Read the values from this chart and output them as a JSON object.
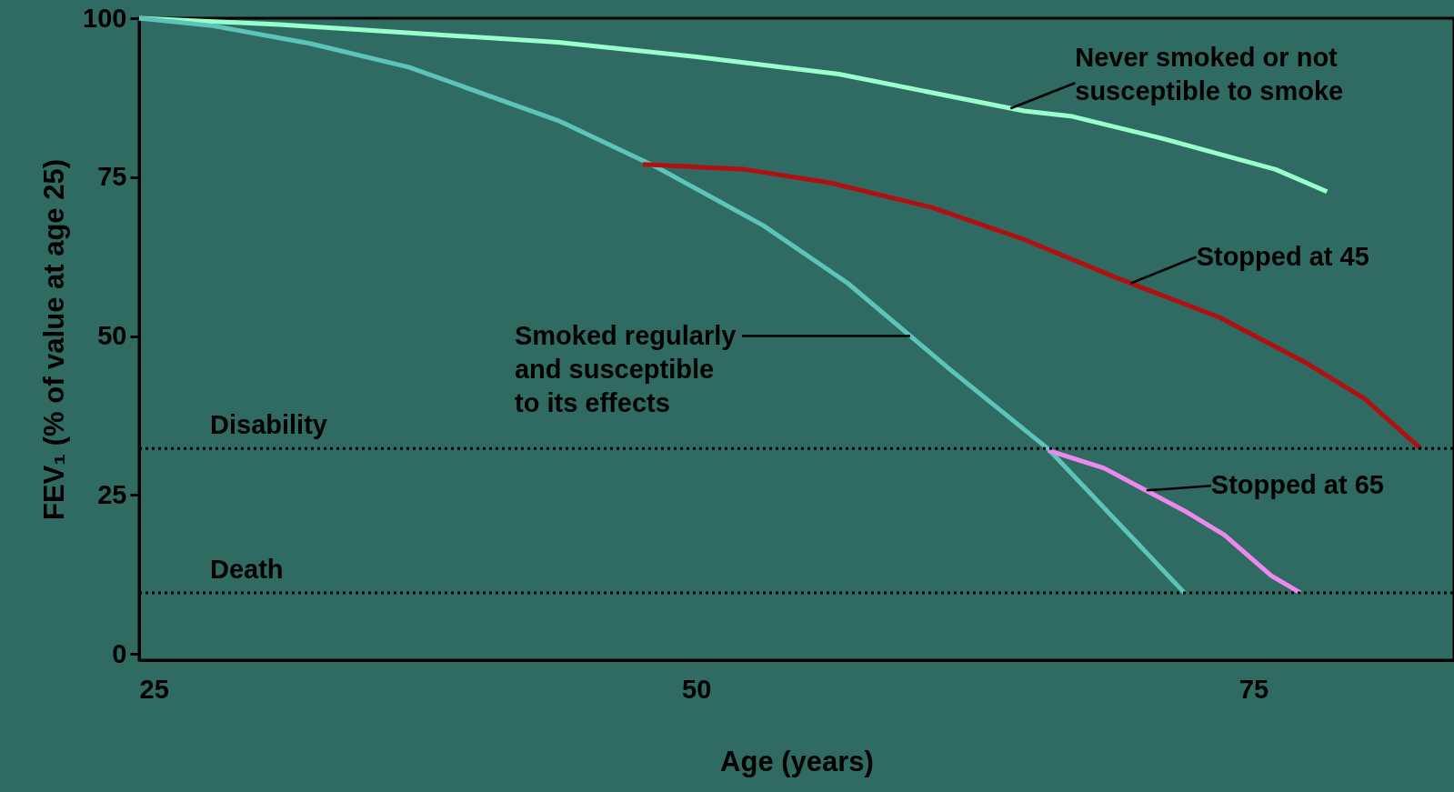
{
  "chart_data": {
    "type": "line",
    "xlabel": "Age (years)",
    "ylabel": "FEV₁ (% of value at age 25)",
    "xlim": [
      25,
      84
    ],
    "ylim": [
      -1,
      100
    ],
    "xticks": [
      25,
      50,
      75
    ],
    "yticks": [
      0,
      25,
      50,
      75,
      100
    ],
    "grid": false,
    "marker": "none",
    "line_style": "solid",
    "series": [
      {
        "color": "#99ffcc",
        "x": [
          25,
          31.3,
          43.8,
          50.1,
          56.4,
          64.7,
          66.8,
          71.0,
          76.0,
          78.3
        ],
        "values": [
          100,
          99,
          96.2,
          93.9,
          91.2,
          85.4,
          84.6,
          81,
          76.2,
          72.7
        ]
      },
      {
        "color": "#5cc4b8",
        "x": [
          25,
          28.3,
          32.7,
          37.1,
          43.8,
          48.2,
          53,
          56.8,
          61.4,
          65.8,
          71.9
        ],
        "values": [
          100,
          98.8,
          96,
          92.3,
          83.9,
          76.6,
          67.4,
          58.3,
          44.7,
          32.2,
          9.6
        ]
      },
      {
        "color": "#b01010",
        "x": [
          47.6,
          52.2,
          56,
          60.6,
          64.7,
          68.9,
          73.5,
          77.3,
          80,
          82.5
        ],
        "values": [
          77,
          76.2,
          74.1,
          70.2,
          65.2,
          59.1,
          52.9,
          45.9,
          40.1,
          32.3
        ]
      },
      {
        "color": "#ee88ee",
        "x": [
          65.8,
          68.3,
          71.9,
          73.7,
          75.8,
          77.1
        ],
        "values": [
          32,
          29.2,
          22.5,
          18.7,
          12.3,
          9.6
        ]
      }
    ],
    "annotations": [
      {
        "text": "Never smoked or not\nsusceptible to smoke",
        "x": 64.1,
        "y": 85.8
      },
      {
        "text": "Smoked regularly\nand susceptible\nto its effects",
        "x": 59.6,
        "y": 50
      },
      {
        "text": "Stopped at 45",
        "x": 69.5,
        "y": 58.3
      },
      {
        "text": "Stopped at 65",
        "x": 70.2,
        "y": 25.7
      }
    ],
    "ref_lines": [
      {
        "axis": "y",
        "value": 32.3,
        "label": "Disability",
        "color": "#000000",
        "line_style": "dotted"
      },
      {
        "axis": "y",
        "value": 9.6,
        "label": "Death",
        "color": "#000000",
        "line_style": "dotted"
      }
    ]
  }
}
